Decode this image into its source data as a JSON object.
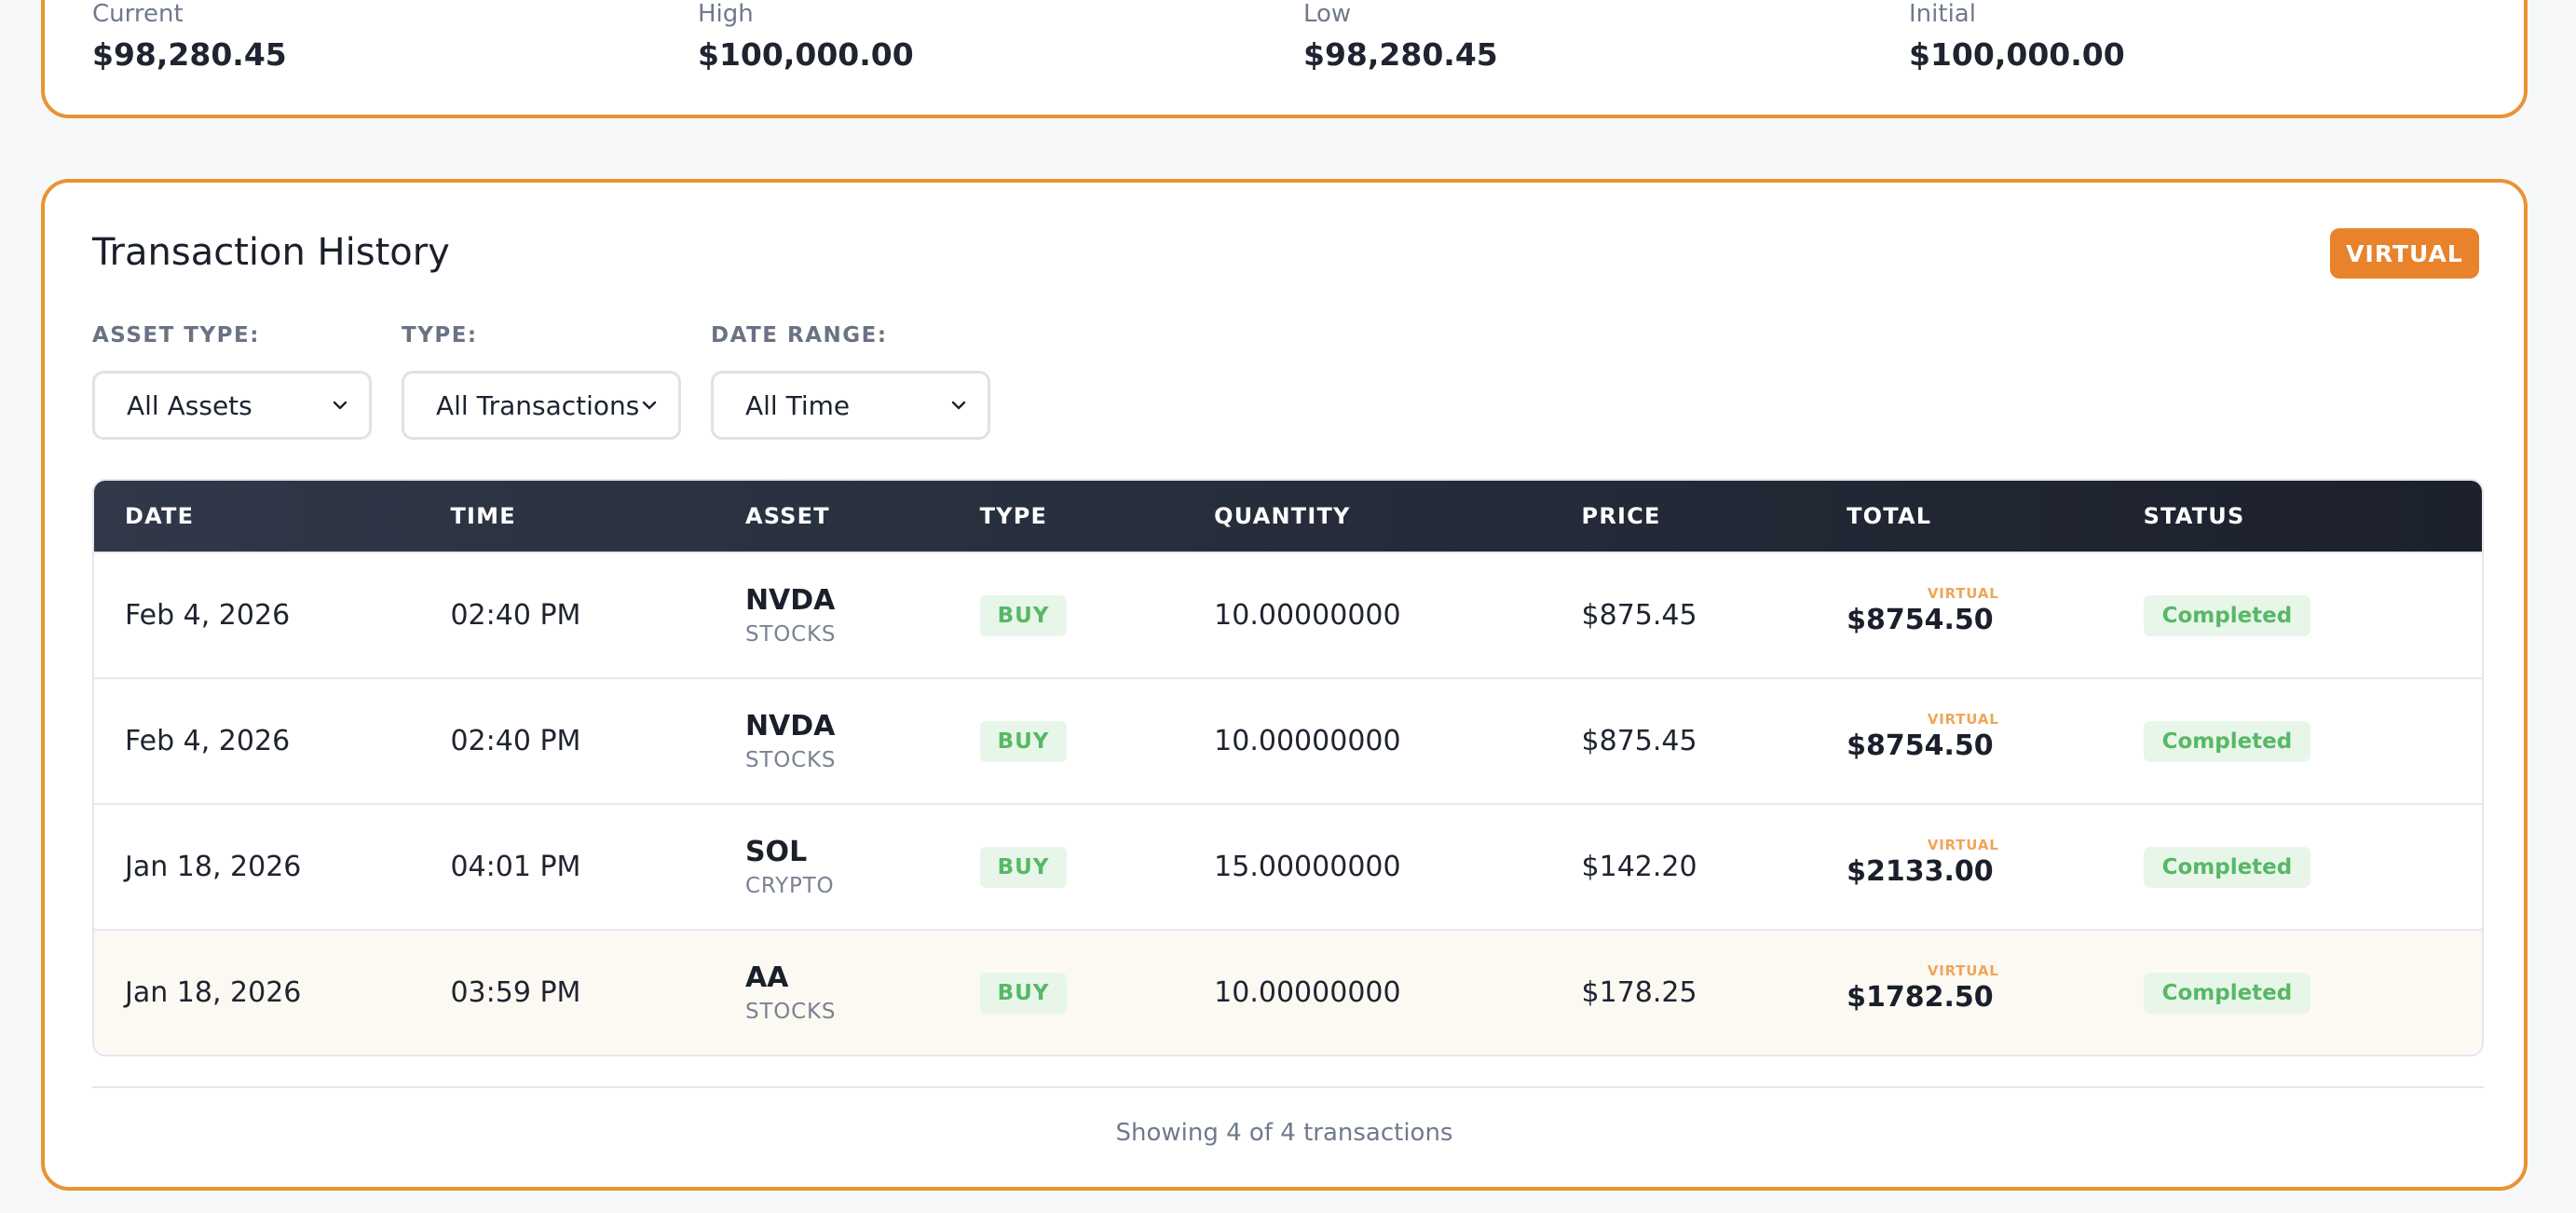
{
  "stats": [
    {
      "label": "Current",
      "value": "$98,280.45"
    },
    {
      "label": "High",
      "value": "$100,000.00"
    },
    {
      "label": "Low",
      "value": "$98,280.45"
    },
    {
      "label": "Initial",
      "value": "$100,000.00"
    }
  ],
  "history": {
    "title": "Transaction History",
    "badge": "VIRTUAL",
    "filters": [
      {
        "label": "ASSET TYPE:",
        "value": "All Assets"
      },
      {
        "label": "TYPE:",
        "value": "All Transactions"
      },
      {
        "label": "DATE RANGE:",
        "value": "All Time"
      }
    ],
    "columns": [
      "DATE",
      "TIME",
      "ASSET",
      "TYPE",
      "QUANTITY",
      "PRICE",
      "TOTAL",
      "STATUS"
    ],
    "rows": [
      {
        "date": "Feb 4, 2026",
        "time": "02:40 PM",
        "symbol": "NVDA",
        "category": "STOCKS",
        "type": "BUY",
        "quantity": "10.00000000",
        "price": "$875.45",
        "total_tag": "VIRTUAL",
        "total": "$8754.50",
        "status": "Completed"
      },
      {
        "date": "Feb 4, 2026",
        "time": "02:40 PM",
        "symbol": "NVDA",
        "category": "STOCKS",
        "type": "BUY",
        "quantity": "10.00000000",
        "price": "$875.45",
        "total_tag": "VIRTUAL",
        "total": "$8754.50",
        "status": "Completed"
      },
      {
        "date": "Jan 18, 2026",
        "time": "04:01 PM",
        "symbol": "SOL",
        "category": "CRYPTO",
        "type": "BUY",
        "quantity": "15.00000000",
        "price": "$142.20",
        "total_tag": "VIRTUAL",
        "total": "$2133.00",
        "status": "Completed"
      },
      {
        "date": "Jan 18, 2026",
        "time": "03:59 PM",
        "symbol": "AA",
        "category": "STOCKS",
        "type": "BUY",
        "quantity": "10.00000000",
        "price": "$178.25",
        "total_tag": "VIRTUAL",
        "total": "$1782.50",
        "status": "Completed"
      }
    ],
    "footer": "Showing 4 of 4 transactions"
  },
  "colors": {
    "accent": "#ea9333",
    "badge": "#e8832c",
    "header_dark": "#1c212c",
    "success_text": "#57b865",
    "success_bg": "#e8f6ea"
  }
}
